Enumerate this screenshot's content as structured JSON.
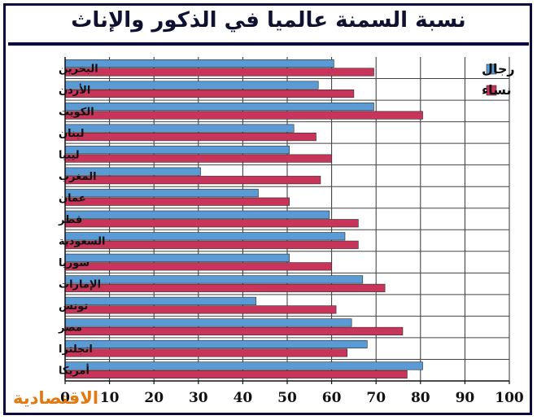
{
  "chart_data": {
    "type": "bar",
    "orientation": "horizontal",
    "title": "نسبة السمنة عالميا في الذكور والإناث",
    "categories": [
      "البحرين",
      "الأردن",
      "الكويت",
      "لبنان",
      "ليبيا",
      "المغرب",
      "عمان",
      "قطر",
      "السعودية",
      "سوريا",
      "الإمارات",
      "تونس",
      "مصر",
      "انجلترا",
      "أمريكا"
    ],
    "series": [
      {
        "name": "رجال",
        "color": "#5b9bd5",
        "values": [
          60.5,
          57,
          69.5,
          51.5,
          50.5,
          30.5,
          43.5,
          59.5,
          63,
          50.5,
          67,
          43,
          64.5,
          68,
          80.5
        ]
      },
      {
        "name": "نساء",
        "color": "#c8345a",
        "values": [
          69.5,
          65,
          80.5,
          56.5,
          60,
          57.5,
          50.5,
          66,
          66,
          60,
          72,
          61,
          76,
          63.5,
          77
        ]
      }
    ],
    "xlim": [
      0,
      100
    ],
    "xticks": [
      0,
      10,
      20,
      30,
      40,
      50,
      60,
      70,
      80,
      90,
      100
    ],
    "grid": "vertical",
    "legend_position": "top-right"
  },
  "branding": {
    "logo_text": "الاقتصادية"
  }
}
